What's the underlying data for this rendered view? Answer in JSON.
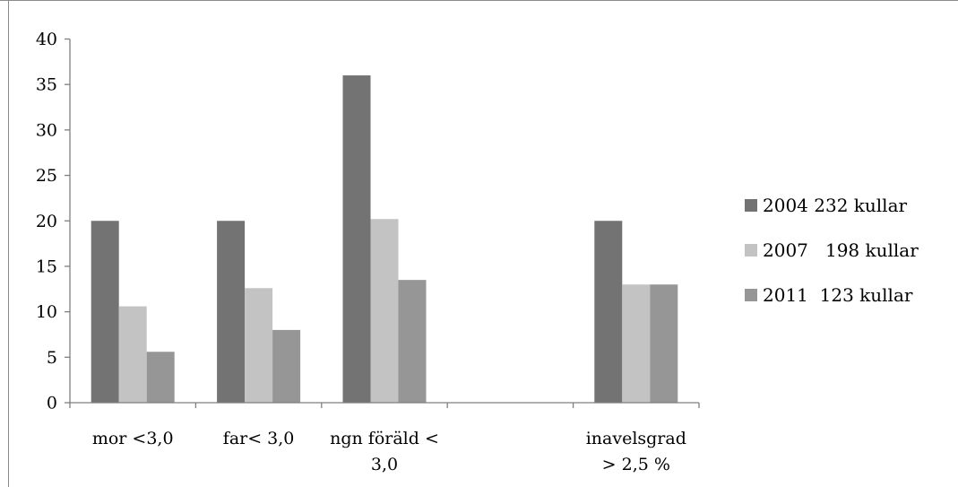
{
  "chart_data": {
    "type": "bar",
    "title": "",
    "xlabel": "",
    "ylabel": "",
    "categories": [
      [
        "mor <3,0"
      ],
      [
        "far< 3,0"
      ],
      [
        "ngn föräld <",
        "3,0"
      ],
      [
        ""
      ],
      [
        "inavelsgrad",
        "> 2,5 %"
      ]
    ],
    "series": [
      {
        "name": "2004 232 kullar",
        "color": "#737373",
        "values": [
          20,
          20,
          36,
          null,
          20
        ]
      },
      {
        "name": "2007   198 kullar",
        "color": "#c3c3c3",
        "values": [
          10.6,
          12.6,
          20.2,
          null,
          13
        ]
      },
      {
        "name": "2011  123 kullar",
        "color": "#969696",
        "values": [
          5.6,
          8,
          13.5,
          null,
          13
        ]
      }
    ],
    "ylim": [
      0,
      40
    ],
    "yticks": [
      0,
      5,
      10,
      15,
      20,
      25,
      30,
      35,
      40
    ],
    "grid": false,
    "legend_position": "right"
  }
}
